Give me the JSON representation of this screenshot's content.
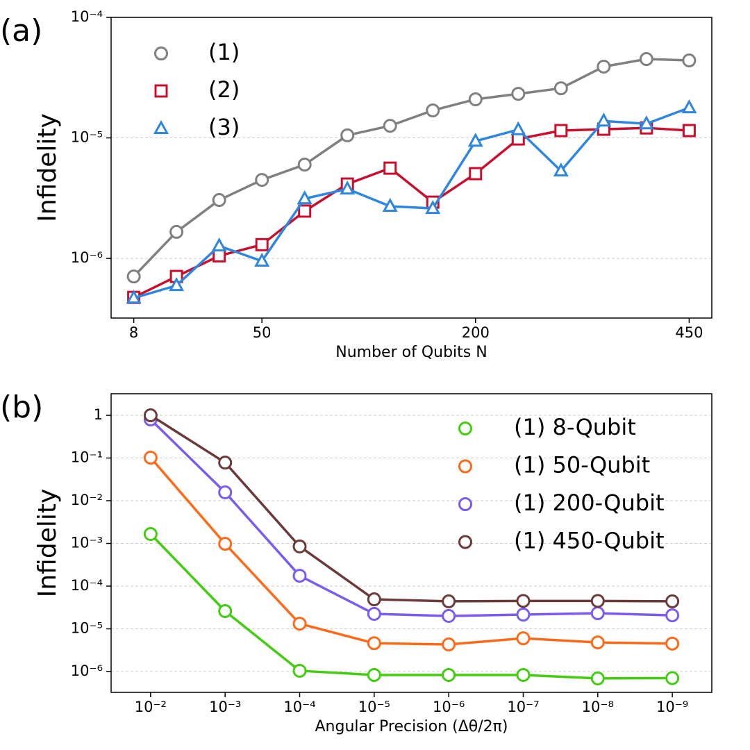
{
  "chart_data": [
    {
      "type": "line",
      "title": "(a)",
      "y_label": "Infidelity",
      "x_label": "Number of Qubits N",
      "categories": [
        "8",
        null,
        null,
        "50",
        null,
        null,
        null,
        null,
        "200",
        null,
        null,
        null,
        null,
        "450"
      ],
      "log_y": true,
      "grid": true,
      "legend": "upper left",
      "ylim": [
        3.2e-07,
        0.0001
      ],
      "yticks": [
        {
          "value": 1e-06,
          "label": "10⁻⁶"
        },
        {
          "value": 1e-05,
          "label": "10⁻⁵"
        },
        {
          "value": 0.0001,
          "label": "10⁻⁴"
        }
      ],
      "series": [
        {
          "name": "(1)",
          "color": "#808080",
          "marker": "circle",
          "values": [
            7.08e-07,
            1.66e-06,
            3.05e-06,
            4.48e-06,
            6e-06,
            1.05e-05,
            1.26e-05,
            1.69e-05,
            2.09e-05,
            2.32e-05,
            2.58e-05,
            3.9e-05,
            4.51e-05,
            4.39e-05
          ]
        },
        {
          "name": "(2)",
          "color": "#c8102e",
          "marker": "square",
          "values": [
            4.75e-07,
            7.08e-07,
            1.05e-06,
            1.3e-06,
            2.47e-06,
            4.14e-06,
            5.61e-06,
            2.93e-06,
            5.05e-06,
            9.8e-06,
            1.15e-05,
            1.18e-05,
            1.21e-05,
            1.15e-05
          ]
        },
        {
          "name": "(3)",
          "color": "#2e86de",
          "marker": "triangle",
          "values": [
            4.69e-07,
            5.96e-07,
            1.27e-06,
            9.5e-07,
            3.13e-06,
            3.77e-06,
            2.71e-06,
            2.6e-06,
            9.4e-06,
            1.17e-05,
            5.32e-06,
            1.38e-05,
            1.31e-05,
            1.78e-05
          ]
        }
      ]
    },
    {
      "type": "line",
      "title": "(b)",
      "y_label": "Infidelity",
      "x_label": "Angular Precision (Δθ/2π)",
      "categories": [
        "10⁻²",
        "10⁻³",
        "10⁻⁴",
        "10⁻⁵",
        "10⁻⁶",
        "10⁻⁷",
        "10⁻⁸",
        "10⁻⁹"
      ],
      "log_y": true,
      "grid": true,
      "legend": "upper right",
      "ylim": [
        3.25e-07,
        3.2
      ],
      "yticks": [
        {
          "value": 1e-06,
          "label": "10⁻⁶"
        },
        {
          "value": 1e-05,
          "label": "10⁻⁵"
        },
        {
          "value": 0.0001,
          "label": "10⁻⁴"
        },
        {
          "value": 0.001,
          "label": "10⁻³"
        },
        {
          "value": 0.01,
          "label": "10⁻²"
        },
        {
          "value": 0.1,
          "label": "10⁻¹"
        },
        1
      ],
      "series": [
        {
          "name": "(1) 8-Qubit",
          "color": "#44cc11",
          "marker": "circle",
          "values": [
            0.00166,
            2.6e-05,
            1.04e-06,
            8.3e-07,
            8.3e-07,
            8.3e-07,
            6.9e-07,
            7e-07
          ]
        },
        {
          "name": "(1) 50-Qubit",
          "color": "#ff6a1a",
          "marker": "circle",
          "values": [
            0.102,
            0.00098,
            1.32e-05,
            4.6e-06,
            4.3e-06,
            6e-06,
            4.8e-06,
            4.5e-06
          ]
        },
        {
          "name": "(1) 200-Qubit",
          "color": "#7b5cf0",
          "marker": "circle",
          "values": [
            0.8,
            0.0157,
            0.000175,
            2.24e-05,
            2e-05,
            2.15e-05,
            2.32e-05,
            2.07e-05
          ]
        },
        {
          "name": "(1) 450-Qubit",
          "color": "#6b3a3a",
          "marker": "circle",
          "values": [
            1.0,
            0.078,
            0.00085,
            4.9e-05,
            4.4e-05,
            4.5e-05,
            4.5e-05,
            4.4e-05
          ]
        }
      ]
    }
  ]
}
